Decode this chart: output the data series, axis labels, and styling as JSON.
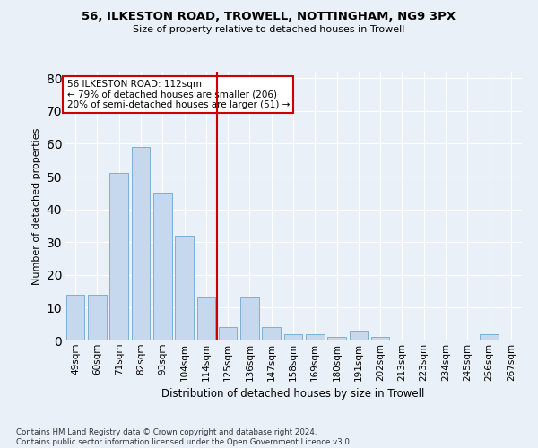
{
  "title": "56, ILKESTON ROAD, TROWELL, NOTTINGHAM, NG9 3PX",
  "subtitle": "Size of property relative to detached houses in Trowell",
  "xlabel": "Distribution of detached houses by size in Trowell",
  "ylabel": "Number of detached properties",
  "bar_color": "#c5d8ed",
  "bar_edge_color": "#7bafd4",
  "categories": [
    "49sqm",
    "60sqm",
    "71sqm",
    "82sqm",
    "93sqm",
    "104sqm",
    "114sqm",
    "125sqm",
    "136sqm",
    "147sqm",
    "158sqm",
    "169sqm",
    "180sqm",
    "191sqm",
    "202sqm",
    "213sqm",
    "223sqm",
    "234sqm",
    "245sqm",
    "256sqm",
    "267sqm"
  ],
  "values": [
    14,
    14,
    51,
    59,
    45,
    32,
    13,
    4,
    13,
    4,
    2,
    2,
    1,
    3,
    1,
    0,
    0,
    0,
    0,
    2,
    0
  ],
  "vline_idx": 6.5,
  "vline_color": "#cc0000",
  "annotation_text": "56 ILKESTON ROAD: 112sqm\n← 79% of detached houses are smaller (206)\n20% of semi-detached houses are larger (51) →",
  "annotation_box_color": "#ffffff",
  "annotation_box_edge": "#cc0000",
  "ylim": [
    0,
    82
  ],
  "yticks": [
    0,
    10,
    20,
    30,
    40,
    50,
    60,
    70,
    80
  ],
  "footnote": "Contains HM Land Registry data © Crown copyright and database right 2024.\nContains public sector information licensed under the Open Government Licence v3.0.",
  "background_color": "#eaf0f8",
  "grid_color": "#ffffff"
}
